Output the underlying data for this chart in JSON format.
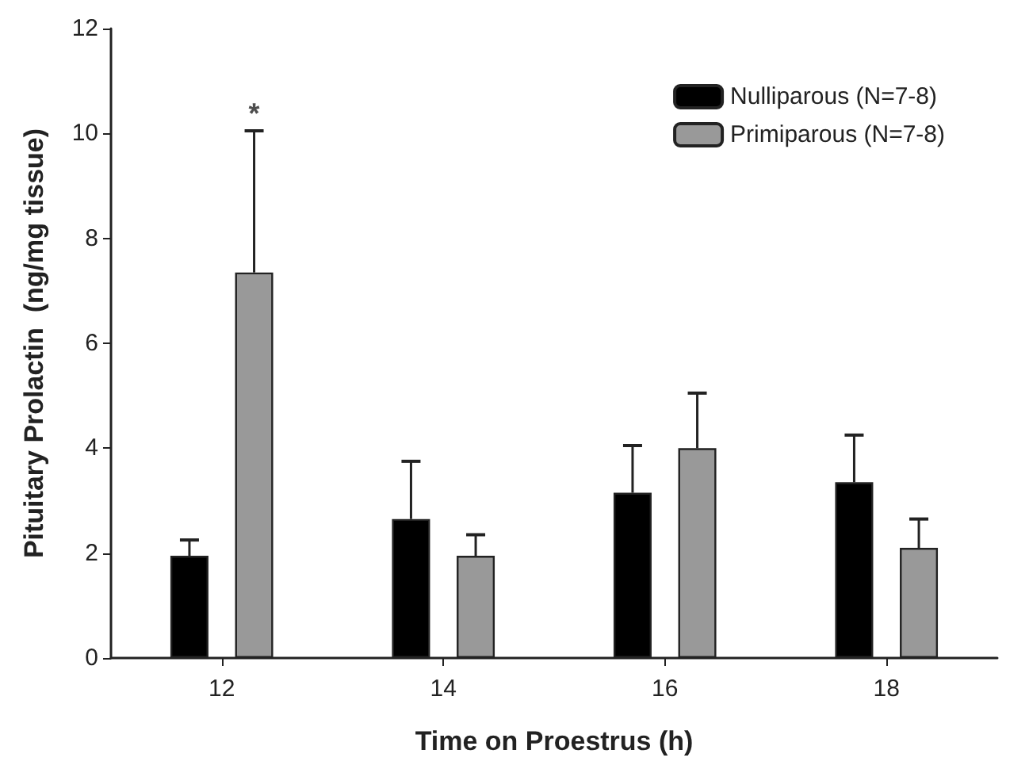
{
  "chart_data": {
    "type": "bar",
    "xlabel": "Time on Proestrus (h)",
    "ylabel": "Pituitary Prolactin  (ng/mg tissue)",
    "categories": [
      "12",
      "14",
      "16",
      "18"
    ],
    "series": [
      {
        "name": "Nulliparous (N=7-8)",
        "color": "#000000",
        "values": [
          1.95,
          2.65,
          3.15,
          3.35
        ],
        "errors": [
          [
            1.95,
            2.25
          ],
          [
            2.65,
            3.75
          ],
          [
            3.15,
            4.05
          ],
          [
            3.35,
            4.25
          ]
        ]
      },
      {
        "name": "Primiparous (N=7-8)",
        "color": "#999999",
        "values": [
          7.35,
          1.95,
          4.0,
          2.1
        ],
        "errors": [
          [
            7.35,
            10.05
          ],
          [
            1.95,
            2.35
          ],
          [
            4.0,
            5.05
          ],
          [
            2.1,
            2.65
          ]
        ]
      }
    ],
    "annotations": [
      "*"
    ],
    "ylim": [
      0,
      12
    ],
    "yticks": [
      0,
      2,
      4,
      6,
      8,
      10,
      12
    ],
    "grid": false,
    "legend": "top right"
  }
}
